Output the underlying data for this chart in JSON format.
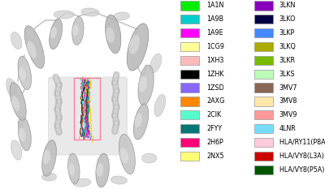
{
  "legend_col1": [
    {
      "label": "1A1N",
      "color": "#00EE00"
    },
    {
      "label": "1A9B",
      "color": "#00CCCC"
    },
    {
      "label": "1A9E",
      "color": "#FF00FF"
    },
    {
      "label": "1CG9",
      "color": "#FFFF99"
    },
    {
      "label": "1XH3",
      "color": "#FFBBBB"
    },
    {
      "label": "1ZHK",
      "color": "#000000"
    },
    {
      "label": "1ZSD",
      "color": "#8866FF"
    },
    {
      "label": "2AXG",
      "color": "#FF8800"
    },
    {
      "label": "2CIK",
      "color": "#55FFCC"
    },
    {
      "label": "2FYY",
      "color": "#007777"
    },
    {
      "label": "2H6P",
      "color": "#FF0077"
    },
    {
      "label": "2NX5",
      "color": "#FFFF77"
    }
  ],
  "legend_col2": [
    {
      "label": "3LKN",
      "color": "#8800BB"
    },
    {
      "label": "3LKO",
      "color": "#000044"
    },
    {
      "label": "3LKP",
      "color": "#4488FF"
    },
    {
      "label": "3LKQ",
      "color": "#AAAA00"
    },
    {
      "label": "3LKR",
      "color": "#77BB00"
    },
    {
      "label": "3LKS",
      "color": "#BBFFBB"
    },
    {
      "label": "3MV7",
      "color": "#886655"
    },
    {
      "label": "3MV8",
      "color": "#FFE8AA"
    },
    {
      "label": "3MV9",
      "color": "#FF9999"
    },
    {
      "label": "4LNR",
      "color": "#77DDFF"
    },
    {
      "label": "HLA/RY11(P8A) model",
      "color": "#FFCCDD"
    },
    {
      "label": "HLA/VY8(L3A) model",
      "color": "#CC0000"
    },
    {
      "label": "HLA/VY8(P5A) model",
      "color": "#005500"
    }
  ],
  "background_color": "#ffffff",
  "text_color": "#000000",
  "font_size": 5.8
}
